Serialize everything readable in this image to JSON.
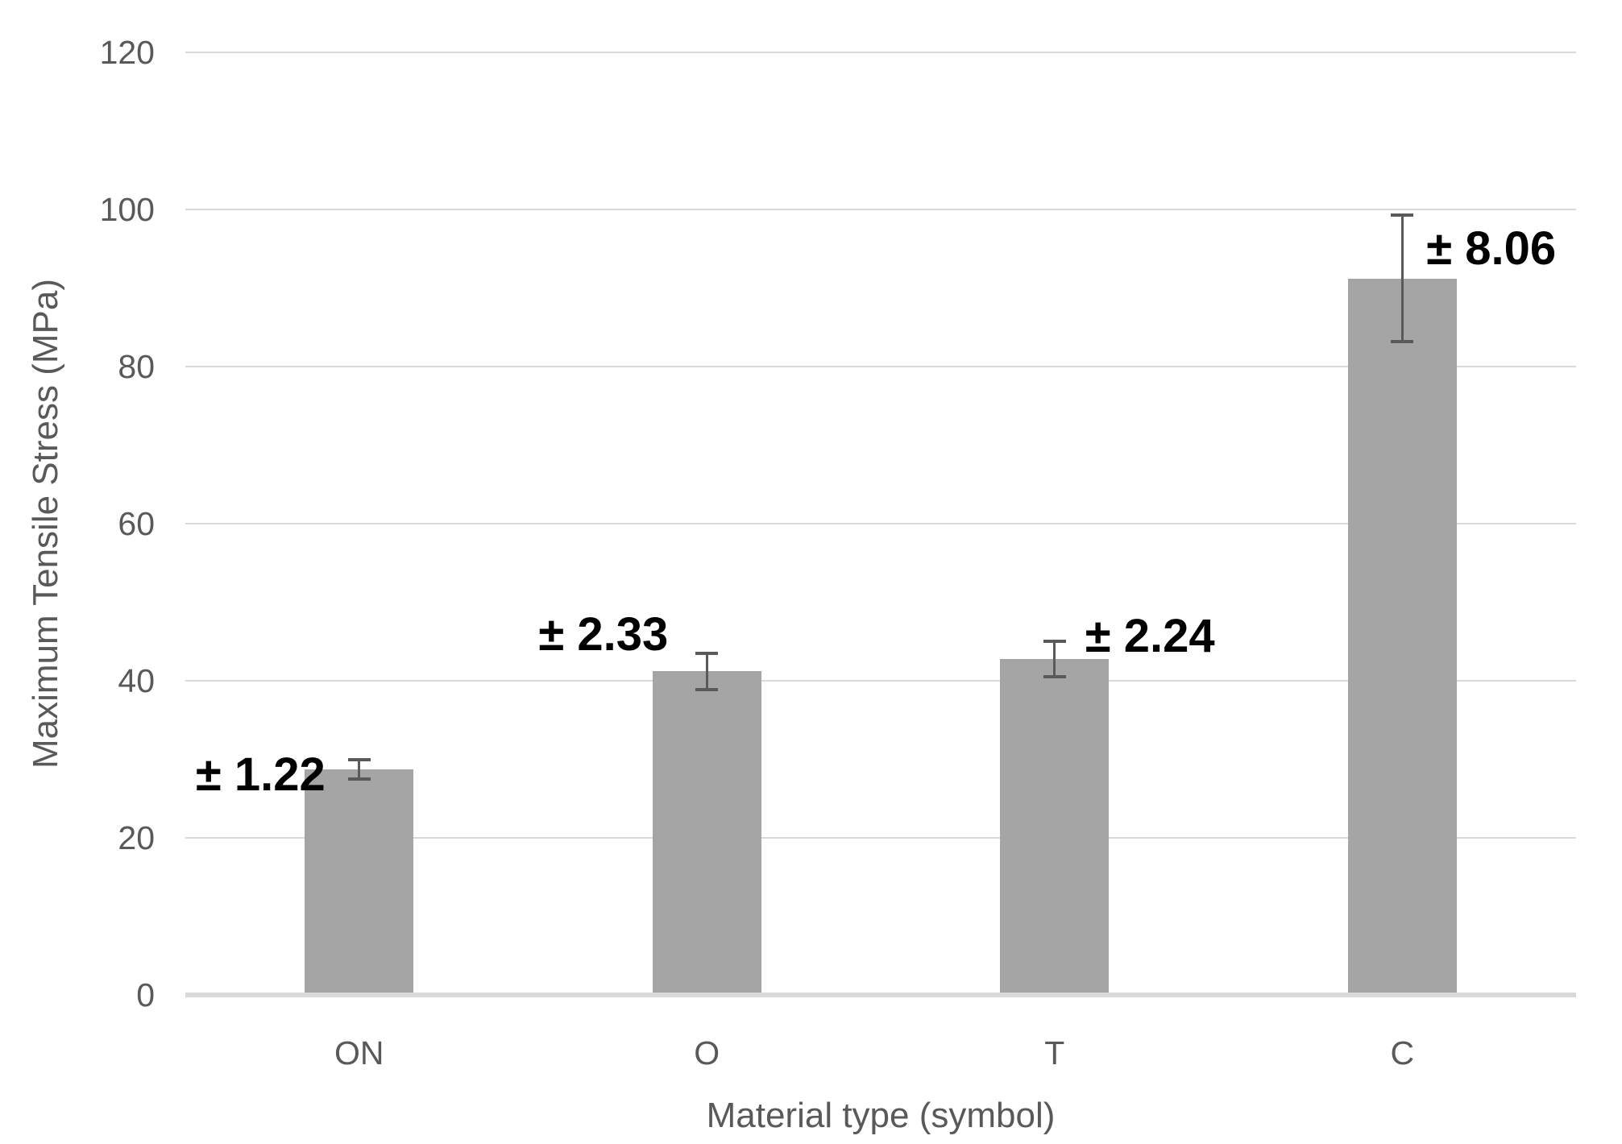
{
  "chart_data": {
    "type": "bar",
    "title": "",
    "categories": [
      "ON",
      "O",
      "T",
      "C"
    ],
    "values": [
      28.7,
      41.2,
      42.8,
      91.2
    ],
    "errors": [
      1.22,
      2.33,
      2.24,
      8.06
    ],
    "error_labels": [
      "± 1.22",
      "± 2.33",
      "± 2.24",
      "± 8.06"
    ],
    "xlabel": "Material type (symbol)",
    "ylabel": "Maximum Tensile Stress (MPa)",
    "ylim": [
      0,
      120
    ],
    "yticks": [
      0,
      20,
      40,
      60,
      80,
      100,
      120
    ],
    "ytick_labels": [
      "0",
      "20",
      "40",
      "60",
      "80",
      "100",
      "120"
    ],
    "grid": true,
    "legend": false,
    "colors": {
      "bar_fill": "#a5a5a5",
      "gridline": "#d9d9d9",
      "axis_line": "#d9d9d9",
      "axis_text": "#595959",
      "error_bar": "#595959",
      "annotation_text": "#000000",
      "background": "#ffffff"
    }
  }
}
